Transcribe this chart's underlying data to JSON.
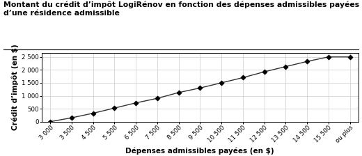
{
  "title_line1": "Montant du crédit d’impôt LogiRénov en fonction des dépenses admissibles payées à l’égard",
  "title_line2": "d’une résidence admissible",
  "xlabel": "Dépenses admissibles payées (en $)",
  "ylabel": "Crédit d’impôt (en $)",
  "x_labels": [
    "3 000",
    "3 500",
    "4 500",
    "5 500",
    "6 500",
    "7 500",
    "8 500",
    "9 500",
    "10 500",
    "11 500",
    "12 500",
    "13 500",
    "14 500",
    "15 500",
    "ou plus"
  ],
  "x_values": [
    0,
    1,
    2,
    3,
    4,
    5,
    6,
    7,
    8,
    9,
    10,
    11,
    12,
    13,
    14
  ],
  "y_values": [
    0,
    150,
    325,
    525,
    725,
    900,
    1125,
    1300,
    1500,
    1700,
    1925,
    2125,
    2325,
    2500,
    2500
  ],
  "yticks": [
    0,
    500,
    1000,
    1500,
    2000,
    2500
  ],
  "ytick_labels": [
    "0",
    "500",
    "1 000",
    "1 500",
    "2 000",
    "2 500"
  ],
  "line_color": "#333333",
  "marker": "D",
  "marker_size": 3.5,
  "marker_color": "#000000",
  "background_color": "#ffffff",
  "grid_color": "#cccccc",
  "title_fontsize": 7.8,
  "label_fontsize": 7.5,
  "tick_fontsize": 6.2
}
